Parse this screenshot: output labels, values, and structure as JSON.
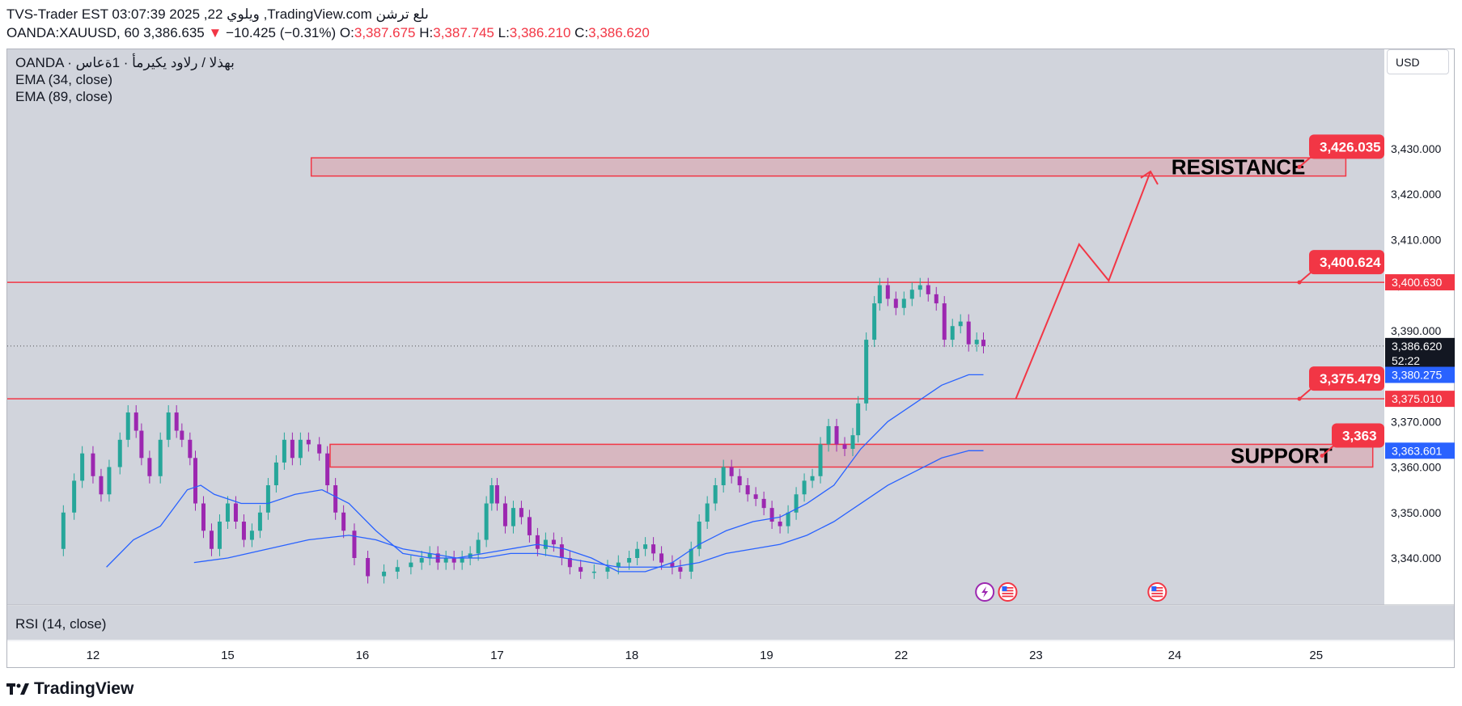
{
  "header": {
    "line1": "TVS-Trader EST 03:07:39 2025 ,22 ويلوي ,TradingView.com ىلع ترشن",
    "symbol": "OANDA:XAUUSD, 60",
    "last": "3,386.635",
    "change": "−10.425 (−0.31%)",
    "o_label": "O:",
    "o": "3,387.675",
    "h_label": "H:",
    "h": "3,387.745",
    "l_label": "L:",
    "l": "3,386.210",
    "c_label": "C:",
    "c": "3,386.620"
  },
  "legend": {
    "source": "OANDA · بهذلا / رلاود يكيرمأ · 1ةعاس",
    "ema34": "EMA (34, close)",
    "ema89": "EMA (89, close)"
  },
  "currency_button": "USD",
  "rsi_label": "RSI (14, close)",
  "brand": "TradingView",
  "colors": {
    "up": "#26a69a",
    "down": "#9c27b0",
    "level": "#f23645",
    "ema": "#2962ff"
  },
  "chart_data": {
    "type": "candlestick",
    "symbol": "OANDA:XAUUSD",
    "interval": "60",
    "ylim": [
      3338,
      3434
    ],
    "y_ticks": [
      3340,
      3350,
      3360,
      3370,
      3380,
      3390,
      3400,
      3410,
      3420,
      3430
    ],
    "y_tick_labels": [
      "3,340.000",
      "3,350.000",
      "3,360.000",
      "3,370.000",
      "3,380.000",
      "3,390.000",
      "3,400.000",
      "3,410.000",
      "3,420.000",
      "3,430.000"
    ],
    "x_ticks": [
      {
        "label": "12",
        "t": 0.3
      },
      {
        "label": "15",
        "t": 1.3
      },
      {
        "label": "16",
        "t": 2.3
      },
      {
        "label": "17",
        "t": 3.3
      },
      {
        "label": "18",
        "t": 4.3
      },
      {
        "label": "19",
        "t": 5.3
      },
      {
        "label": "22",
        "t": 6.3
      },
      {
        "label": "23",
        "t": 7.3
      },
      {
        "label": "24",
        "t": 8.33
      },
      {
        "label": "25",
        "t": 9.38
      }
    ],
    "xlim": [
      0,
      10.65
    ],
    "close_series": [
      [
        0.0,
        3342
      ],
      [
        0.08,
        3350
      ],
      [
        0.16,
        3357
      ],
      [
        0.22,
        3363
      ],
      [
        0.3,
        3358
      ],
      [
        0.36,
        3354
      ],
      [
        0.42,
        3360
      ],
      [
        0.5,
        3366
      ],
      [
        0.56,
        3372
      ],
      [
        0.62,
        3368
      ],
      [
        0.66,
        3362
      ],
      [
        0.72,
        3358
      ],
      [
        0.8,
        3366
      ],
      [
        0.86,
        3372
      ],
      [
        0.92,
        3368
      ],
      [
        0.96,
        3366
      ],
      [
        1.02,
        3362
      ],
      [
        1.06,
        3352
      ],
      [
        1.12,
        3346
      ],
      [
        1.18,
        3342
      ],
      [
        1.24,
        3348
      ],
      [
        1.3,
        3352
      ],
      [
        1.36,
        3348
      ],
      [
        1.42,
        3344
      ],
      [
        1.48,
        3346
      ],
      [
        1.54,
        3350
      ],
      [
        1.6,
        3356
      ],
      [
        1.66,
        3361
      ],
      [
        1.72,
        3366
      ],
      [
        1.78,
        3362
      ],
      [
        1.84,
        3366
      ],
      [
        1.9,
        3365
      ],
      [
        1.98,
        3363
      ],
      [
        2.04,
        3356
      ],
      [
        2.1,
        3350
      ],
      [
        2.16,
        3346
      ],
      [
        2.24,
        3340
      ],
      [
        2.34,
        3336
      ],
      [
        2.46,
        3337
      ],
      [
        2.56,
        3338
      ],
      [
        2.66,
        3339
      ],
      [
        2.74,
        3340
      ],
      [
        2.8,
        3341
      ],
      [
        2.86,
        3339
      ],
      [
        2.92,
        3340
      ],
      [
        2.98,
        3339
      ],
      [
        3.04,
        3340
      ],
      [
        3.1,
        3341
      ],
      [
        3.16,
        3344
      ],
      [
        3.22,
        3352
      ],
      [
        3.26,
        3356
      ],
      [
        3.3,
        3352
      ],
      [
        3.36,
        3347
      ],
      [
        3.42,
        3351
      ],
      [
        3.48,
        3349
      ],
      [
        3.54,
        3345
      ],
      [
        3.6,
        3342
      ],
      [
        3.66,
        3344
      ],
      [
        3.72,
        3343
      ],
      [
        3.78,
        3340
      ],
      [
        3.84,
        3338
      ],
      [
        3.92,
        3337
      ],
      [
        4.02,
        3337
      ],
      [
        4.12,
        3338
      ],
      [
        4.2,
        3339
      ],
      [
        4.28,
        3340
      ],
      [
        4.34,
        3342
      ],
      [
        4.4,
        3343
      ],
      [
        4.46,
        3341
      ],
      [
        4.52,
        3339
      ],
      [
        4.6,
        3338
      ],
      [
        4.66,
        3337
      ],
      [
        4.74,
        3342
      ],
      [
        4.8,
        3348
      ],
      [
        4.86,
        3352
      ],
      [
        4.92,
        3356
      ],
      [
        4.98,
        3360
      ],
      [
        5.04,
        3358
      ],
      [
        5.1,
        3356
      ],
      [
        5.16,
        3354
      ],
      [
        5.22,
        3353
      ],
      [
        5.28,
        3351
      ],
      [
        5.34,
        3348
      ],
      [
        5.4,
        3347
      ],
      [
        5.46,
        3350
      ],
      [
        5.52,
        3354
      ],
      [
        5.58,
        3357
      ],
      [
        5.64,
        3358
      ],
      [
        5.7,
        3365
      ],
      [
        5.76,
        3369
      ],
      [
        5.82,
        3365
      ],
      [
        5.88,
        3364
      ],
      [
        5.94,
        3367
      ],
      [
        5.98,
        3374
      ],
      [
        6.04,
        3388
      ],
      [
        6.1,
        3396
      ],
      [
        6.14,
        3400
      ],
      [
        6.2,
        3397
      ],
      [
        6.26,
        3395
      ],
      [
        6.32,
        3397
      ],
      [
        6.38,
        3399
      ],
      [
        6.44,
        3400
      ],
      [
        6.5,
        3398
      ],
      [
        6.56,
        3396
      ],
      [
        6.62,
        3388
      ],
      [
        6.68,
        3391
      ],
      [
        6.74,
        3392
      ],
      [
        6.8,
        3387
      ],
      [
        6.86,
        3388
      ],
      [
        6.91,
        3386.6
      ]
    ],
    "ema34": [
      [
        0.4,
        3338
      ],
      [
        0.6,
        3344
      ],
      [
        0.8,
        3347
      ],
      [
        1.0,
        3355
      ],
      [
        1.1,
        3356
      ],
      [
        1.2,
        3354
      ],
      [
        1.4,
        3352
      ],
      [
        1.6,
        3352
      ],
      [
        1.8,
        3354
      ],
      [
        2.0,
        3355
      ],
      [
        2.2,
        3352
      ],
      [
        2.4,
        3346
      ],
      [
        2.6,
        3341
      ],
      [
        2.8,
        3340
      ],
      [
        3.0,
        3340
      ],
      [
        3.2,
        3341
      ],
      [
        3.4,
        3342
      ],
      [
        3.6,
        3343
      ],
      [
        3.8,
        3342
      ],
      [
        4.0,
        3340
      ],
      [
        4.2,
        3337
      ],
      [
        4.4,
        3337
      ],
      [
        4.6,
        3339
      ],
      [
        4.8,
        3343
      ],
      [
        5.0,
        3346
      ],
      [
        5.2,
        3348
      ],
      [
        5.4,
        3349
      ],
      [
        5.6,
        3352
      ],
      [
        5.8,
        3356
      ],
      [
        6.0,
        3364
      ],
      [
        6.2,
        3370
      ],
      [
        6.4,
        3374
      ],
      [
        6.6,
        3378
      ],
      [
        6.8,
        3380.3
      ],
      [
        6.91,
        3380.3
      ]
    ],
    "ema89": [
      [
        1.05,
        3339
      ],
      [
        1.3,
        3340
      ],
      [
        1.6,
        3342
      ],
      [
        1.9,
        3344
      ],
      [
        2.2,
        3345
      ],
      [
        2.4,
        3344
      ],
      [
        2.6,
        3342
      ],
      [
        2.8,
        3341
      ],
      [
        3.0,
        3340
      ],
      [
        3.2,
        3340
      ],
      [
        3.4,
        3341
      ],
      [
        3.6,
        3341
      ],
      [
        3.8,
        3340
      ],
      [
        4.0,
        3339
      ],
      [
        4.2,
        3338
      ],
      [
        4.4,
        3338
      ],
      [
        4.6,
        3338
      ],
      [
        4.8,
        3339
      ],
      [
        5.0,
        3341
      ],
      [
        5.2,
        3342
      ],
      [
        5.4,
        3343
      ],
      [
        5.6,
        3345
      ],
      [
        5.8,
        3348
      ],
      [
        6.0,
        3352
      ],
      [
        6.2,
        3356
      ],
      [
        6.4,
        3359
      ],
      [
        6.6,
        3362
      ],
      [
        6.8,
        3363.6
      ],
      [
        6.91,
        3363.6
      ]
    ],
    "levels": [
      {
        "value": 3400.63,
        "label": "3,400.630",
        "callout": "3,400.624"
      },
      {
        "value": 3375.01,
        "label": "3,375.010",
        "callout": "3,375.479"
      }
    ],
    "zones": [
      {
        "name": "RESISTANCE",
        "top": 3427,
        "bottom": 3425,
        "x_start": 1.92,
        "x_end": 9.6,
        "callout": "3,426.035"
      },
      {
        "name": "SUPPORT",
        "top": 3364,
        "bottom": 3361,
        "x_start": 2.06,
        "x_end": 9.8,
        "callout": "3,363"
      }
    ],
    "projection": [
      [
        7.15,
        3375
      ],
      [
        7.62,
        3409
      ],
      [
        7.84,
        3401
      ],
      [
        8.15,
        3425
      ]
    ],
    "price_tags": [
      {
        "value": 3386.62,
        "label": "3,386.620",
        "sub": "52:22",
        "kind": "last"
      },
      {
        "value": 3380.275,
        "label": "3,380.275",
        "kind": "ema"
      },
      {
        "value": 3363.601,
        "label": "3,363.601",
        "kind": "ema"
      }
    ],
    "events": [
      {
        "t": 6.92,
        "icon": "lightning-icon"
      },
      {
        "t": 7.09,
        "icon": "us-flag-icon"
      },
      {
        "t": 8.2,
        "icon": "us-flag-icon"
      }
    ]
  }
}
